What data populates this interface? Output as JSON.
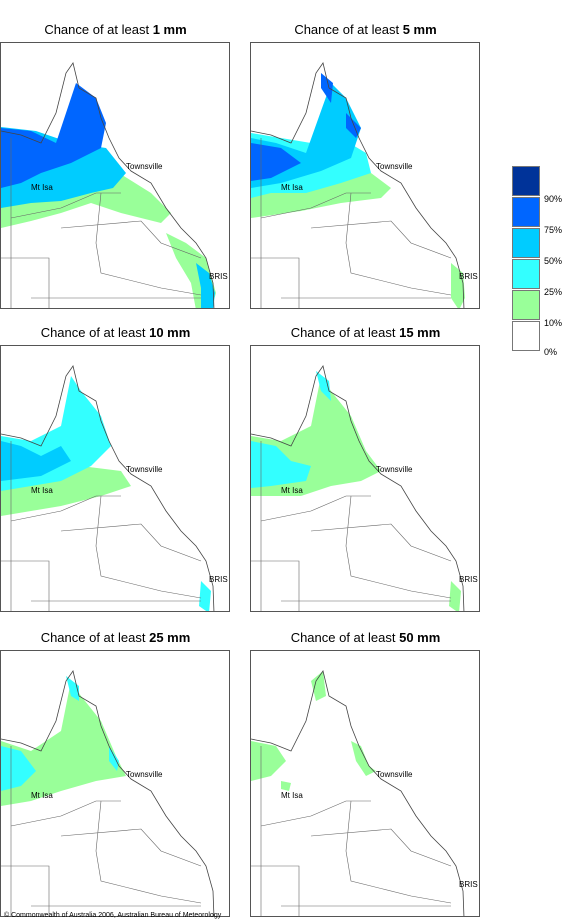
{
  "panels": [
    {
      "title_prefix": "Chance of at least ",
      "amount": "1 mm"
    },
    {
      "title_prefix": "Chance of at least ",
      "amount": "5 mm"
    },
    {
      "title_prefix": "Chance of at least ",
      "amount": "10 mm"
    },
    {
      "title_prefix": "Chance of at least ",
      "amount": "15 mm"
    },
    {
      "title_prefix": "Chance of at least ",
      "amount": "25 mm"
    },
    {
      "title_prefix": "Chance of at least ",
      "amount": "50 mm"
    }
  ],
  "places": {
    "townsville": "Townsville",
    "mt_isa": "Mt Isa",
    "brisbane": "BRIS"
  },
  "legend": {
    "labels": [
      "90%",
      "75%",
      "50%",
      "25%",
      "10%",
      "0%"
    ],
    "colors": [
      "#003399",
      "#0066ff",
      "#00ccff",
      "#33ffff",
      "#99ff99",
      "#ffffff"
    ]
  },
  "copyright": "© Commonwealth of Australia 2006, Australian Bureau of Meteorology"
}
